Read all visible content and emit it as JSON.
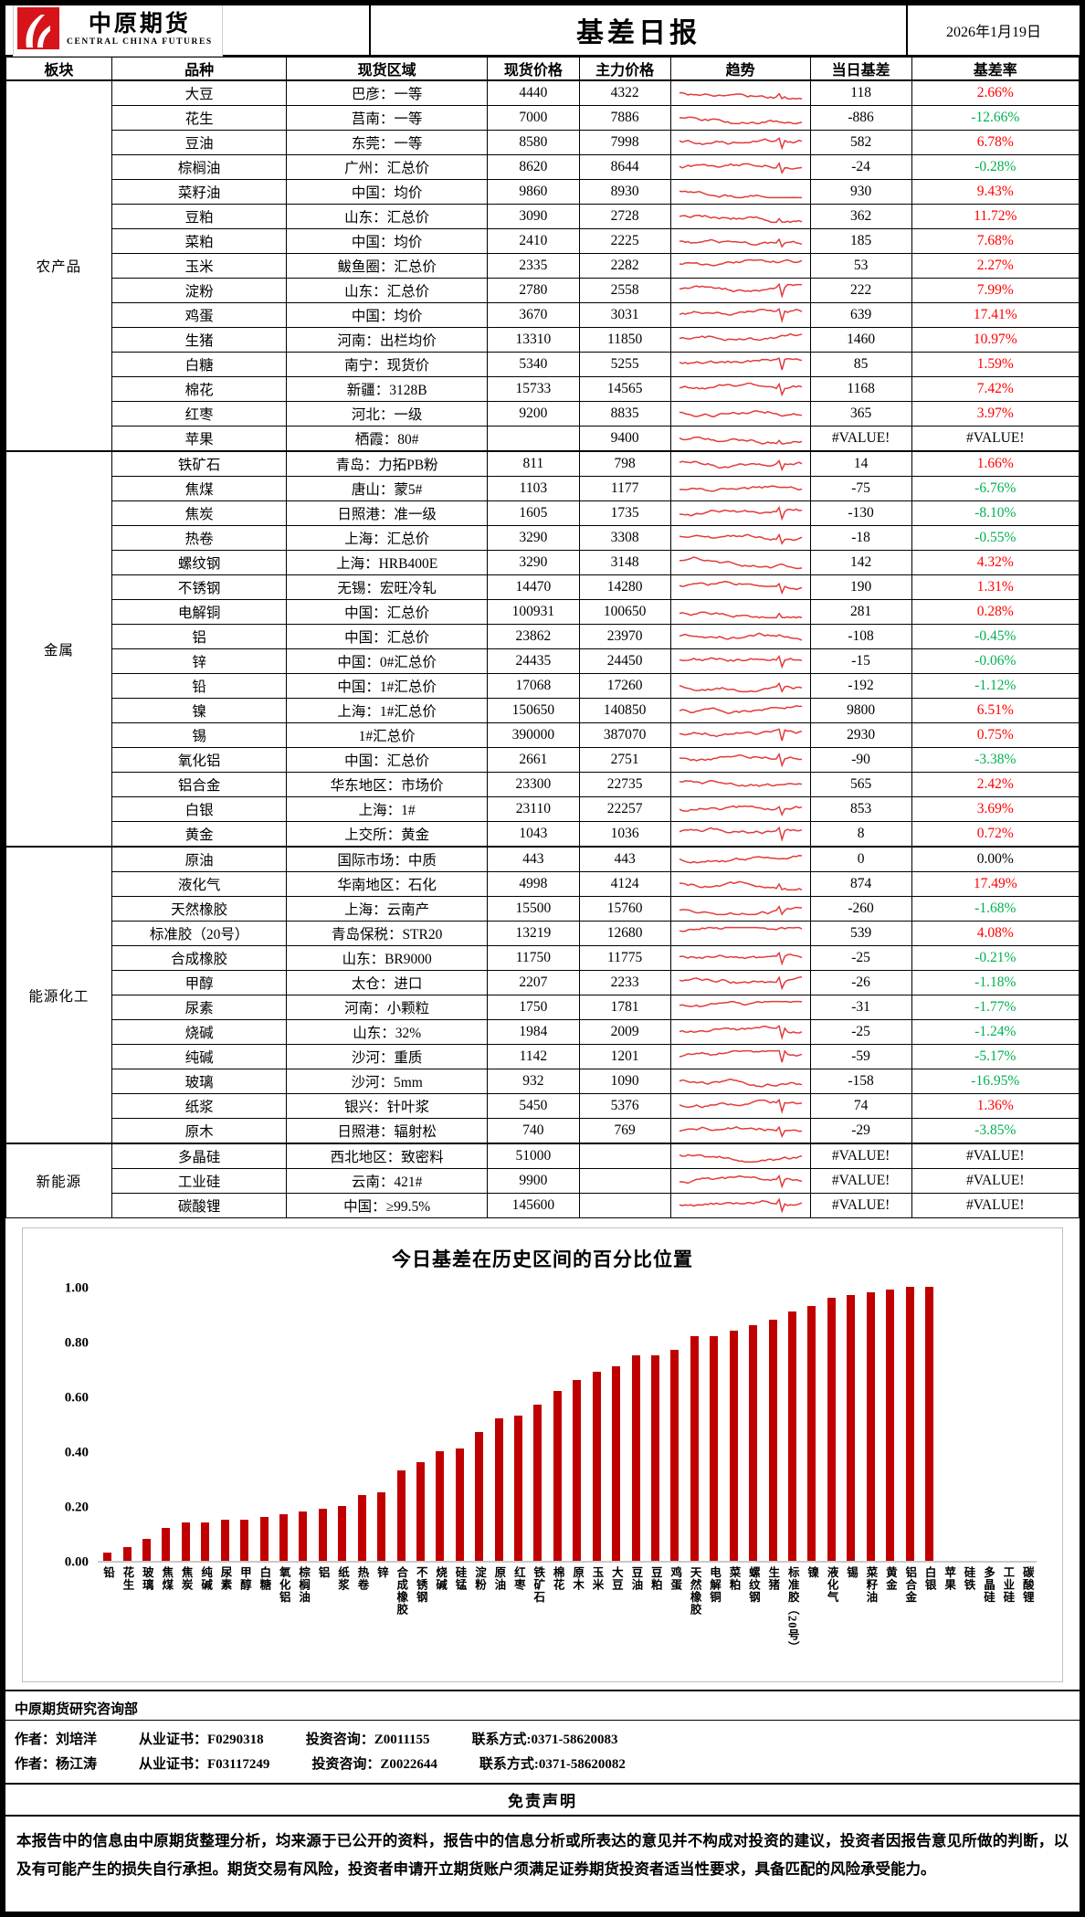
{
  "header": {
    "brand_cn": "中原期货",
    "brand_en": "CENTRAL CHINA FUTURES",
    "title": "基差日报",
    "date": "2026年1月19日"
  },
  "table": {
    "columns": [
      "板块",
      "品种",
      "现货区域",
      "现货价格",
      "主力价格",
      "趋势",
      "当日基差",
      "基差率"
    ],
    "sections": [
      {
        "name": "农产品",
        "rows": [
          [
            "大豆",
            "巴彦：一等",
            "4440",
            "4322",
            "118",
            "2.66%"
          ],
          [
            "花生",
            "莒南：一等",
            "7000",
            "7886",
            "-886",
            "-12.66%"
          ],
          [
            "豆油",
            "东莞：一等",
            "8580",
            "7998",
            "582",
            "6.78%"
          ],
          [
            "棕榈油",
            "广州：汇总价",
            "8620",
            "8644",
            "-24",
            "-0.28%"
          ],
          [
            "菜籽油",
            "中国：均价",
            "9860",
            "8930",
            "930",
            "9.43%"
          ],
          [
            "豆粕",
            "山东：汇总价",
            "3090",
            "2728",
            "362",
            "11.72%"
          ],
          [
            "菜粕",
            "中国：均价",
            "2410",
            "2225",
            "185",
            "7.68%"
          ],
          [
            "玉米",
            "鲅鱼圈：汇总价",
            "2335",
            "2282",
            "53",
            "2.27%"
          ],
          [
            "淀粉",
            "山东：汇总价",
            "2780",
            "2558",
            "222",
            "7.99%"
          ],
          [
            "鸡蛋",
            "中国：均价",
            "3670",
            "3031",
            "639",
            "17.41%"
          ],
          [
            "生猪",
            "河南：出栏均价",
            "13310",
            "11850",
            "1460",
            "10.97%"
          ],
          [
            "白糖",
            "南宁：现货价",
            "5340",
            "5255",
            "85",
            "1.59%"
          ],
          [
            "棉花",
            "新疆：3128B",
            "15733",
            "14565",
            "1168",
            "7.42%"
          ],
          [
            "红枣",
            "河北：一级",
            "9200",
            "8835",
            "365",
            "3.97%"
          ],
          [
            "苹果",
            "栖霞：80#",
            "",
            "9400",
            "#VALUE!",
            "#VALUE!"
          ]
        ]
      },
      {
        "name": "金属",
        "rows": [
          [
            "铁矿石",
            "青岛：力拓PB粉",
            "811",
            "798",
            "14",
            "1.66%"
          ],
          [
            "焦煤",
            "唐山：蒙5#",
            "1103",
            "1177",
            "-75",
            "-6.76%"
          ],
          [
            "焦炭",
            "日照港：准一级",
            "1605",
            "1735",
            "-130",
            "-8.10%"
          ],
          [
            "热卷",
            "上海：汇总价",
            "3290",
            "3308",
            "-18",
            "-0.55%"
          ],
          [
            "螺纹钢",
            "上海：HRB400E",
            "3290",
            "3148",
            "142",
            "4.32%"
          ],
          [
            "不锈钢",
            "无锡：宏旺冷轧",
            "14470",
            "14280",
            "190",
            "1.31%"
          ],
          [
            "电解铜",
            "中国：汇总价",
            "100931",
            "100650",
            "281",
            "0.28%"
          ],
          [
            "铝",
            "中国：汇总价",
            "23862",
            "23970",
            "-108",
            "-0.45%"
          ],
          [
            "锌",
            "中国：0#汇总价",
            "24435",
            "24450",
            "-15",
            "-0.06%"
          ],
          [
            "铅",
            "中国：1#汇总价",
            "17068",
            "17260",
            "-192",
            "-1.12%"
          ],
          [
            "镍",
            "上海：1#汇总价",
            "150650",
            "140850",
            "9800",
            "6.51%"
          ],
          [
            "锡",
            "1#汇总价",
            "390000",
            "387070",
            "2930",
            "0.75%"
          ],
          [
            "氧化铝",
            "中国：汇总价",
            "2661",
            "2751",
            "-90",
            "-3.38%"
          ],
          [
            "铝合金",
            "华东地区：市场价",
            "23300",
            "22735",
            "565",
            "2.42%"
          ],
          [
            "白银",
            "上海：1#",
            "23110",
            "22257",
            "853",
            "3.69%"
          ],
          [
            "黄金",
            "上交所：黄金",
            "1043",
            "1036",
            "8",
            "0.72%"
          ]
        ]
      },
      {
        "name": "能源化工",
        "rows": [
          [
            "原油",
            "国际市场：中质",
            "443",
            "443",
            "0",
            "0.00%"
          ],
          [
            "液化气",
            "华南地区：石化",
            "4998",
            "4124",
            "874",
            "17.49%"
          ],
          [
            "天然橡胶",
            "上海：云南产",
            "15500",
            "15760",
            "-260",
            "-1.68%"
          ],
          [
            "标准胶（20号）",
            "青岛保税：STR20",
            "13219",
            "12680",
            "539",
            "4.08%"
          ],
          [
            "合成橡胶",
            "山东：BR9000",
            "11750",
            "11775",
            "-25",
            "-0.21%"
          ],
          [
            "甲醇",
            "太仓：进口",
            "2207",
            "2233",
            "-26",
            "-1.18%"
          ],
          [
            "尿素",
            "河南：小颗粒",
            "1750",
            "1781",
            "-31",
            "-1.77%"
          ],
          [
            "烧碱",
            "山东：32%",
            "1984",
            "2009",
            "-25",
            "-1.24%"
          ],
          [
            "纯碱",
            "沙河：重质",
            "1142",
            "1201",
            "-59",
            "-5.17%"
          ],
          [
            "玻璃",
            "沙河：5mm",
            "932",
            "1090",
            "-158",
            "-16.95%"
          ],
          [
            "纸浆",
            "银兴：针叶浆",
            "5450",
            "5376",
            "74",
            "1.36%"
          ],
          [
            "原木",
            "日照港：辐射松",
            "740",
            "769",
            "-29",
            "-3.85%"
          ]
        ]
      },
      {
        "name": "新能源",
        "rows": [
          [
            "多晶硅",
            "西北地区：致密料",
            "51000",
            "",
            "#VALUE!",
            "#VALUE!"
          ],
          [
            "工业硅",
            "云南：421#",
            "9900",
            "",
            "#VALUE!",
            "#VALUE!"
          ],
          [
            "碳酸锂",
            "中国：≥99.5%",
            "145600",
            "",
            "#VALUE!",
            "#VALUE!"
          ]
        ]
      }
    ]
  },
  "chart_data": {
    "type": "bar",
    "title": "今日基差在历史区间的百分比位置",
    "xlabel": "",
    "ylabel": "",
    "ylim": [
      0,
      1
    ],
    "grid": false,
    "legend": "none",
    "yticks": [
      "0.00",
      "0.20",
      "0.40",
      "0.60",
      "0.80",
      "1.00"
    ],
    "categories": [
      "铅",
      "花生",
      "玻璃",
      "焦煤",
      "焦炭",
      "纯碱",
      "尿素",
      "甲醇",
      "白糖",
      "氧化铝",
      "棕榈油",
      "铝",
      "纸浆",
      "热卷",
      "锌",
      "合成橡胶",
      "不锈钢",
      "烧碱",
      "硅锰",
      "淀粉",
      "原油",
      "红枣",
      "铁矿石",
      "棉花",
      "原木",
      "玉米",
      "大豆",
      "豆油",
      "豆粕",
      "鸡蛋",
      "天然橡胶",
      "电解铜",
      "菜粕",
      "螺纹钢",
      "生猪",
      "标准胶（20号）",
      "镍",
      "液化气",
      "锡",
      "菜籽油",
      "黄金",
      "铝合金",
      "白银",
      "苹果",
      "硅铁",
      "多晶硅",
      "工业硅",
      "碳酸锂"
    ],
    "values": [
      0.03,
      0.05,
      0.08,
      0.12,
      0.14,
      0.14,
      0.15,
      0.15,
      0.16,
      0.17,
      0.18,
      0.19,
      0.2,
      0.24,
      0.25,
      0.33,
      0.36,
      0.4,
      0.41,
      0.47,
      0.52,
      0.53,
      0.57,
      0.62,
      0.66,
      0.69,
      0.71,
      0.75,
      0.75,
      0.77,
      0.82,
      0.82,
      0.84,
      0.86,
      0.88,
      0.91,
      0.93,
      0.96,
      0.97,
      0.98,
      0.99,
      1.0,
      1.0,
      null,
      null,
      null,
      null,
      null
    ]
  },
  "footer": {
    "dept": "中原期货研究咨询部",
    "authors": [
      [
        "作者：刘培洋",
        "从业证书：F0290318",
        "投资咨询：Z0011155",
        "联系方式:0371-58620083"
      ],
      [
        "作者：杨江涛",
        "从业证书：F03117249",
        "投资咨询：Z0022644",
        "联系方式:0371-58620082"
      ]
    ],
    "disclaimer_title": "免责声明",
    "disclaimer": "本报告中的信息由中原期货整理分析，均来源于已公开的资料，报告中的信息分析或所表达的意见并不构成对投资的建议，投资者因报告意见所做的判断，以及有可能产生的损失自行承担。期货交易有风险，投资者申请开立期货账户须满足证券期货投资者适当性要求，具备匹配的风险承受能力。"
  },
  "colors": {
    "positive_rate": "#ff0000",
    "negative_rate": "#00b050",
    "neutral_rate": "#000000",
    "bar": "#c00000",
    "sparkline": "#e23b3b",
    "logo_red": "#d7141a"
  }
}
